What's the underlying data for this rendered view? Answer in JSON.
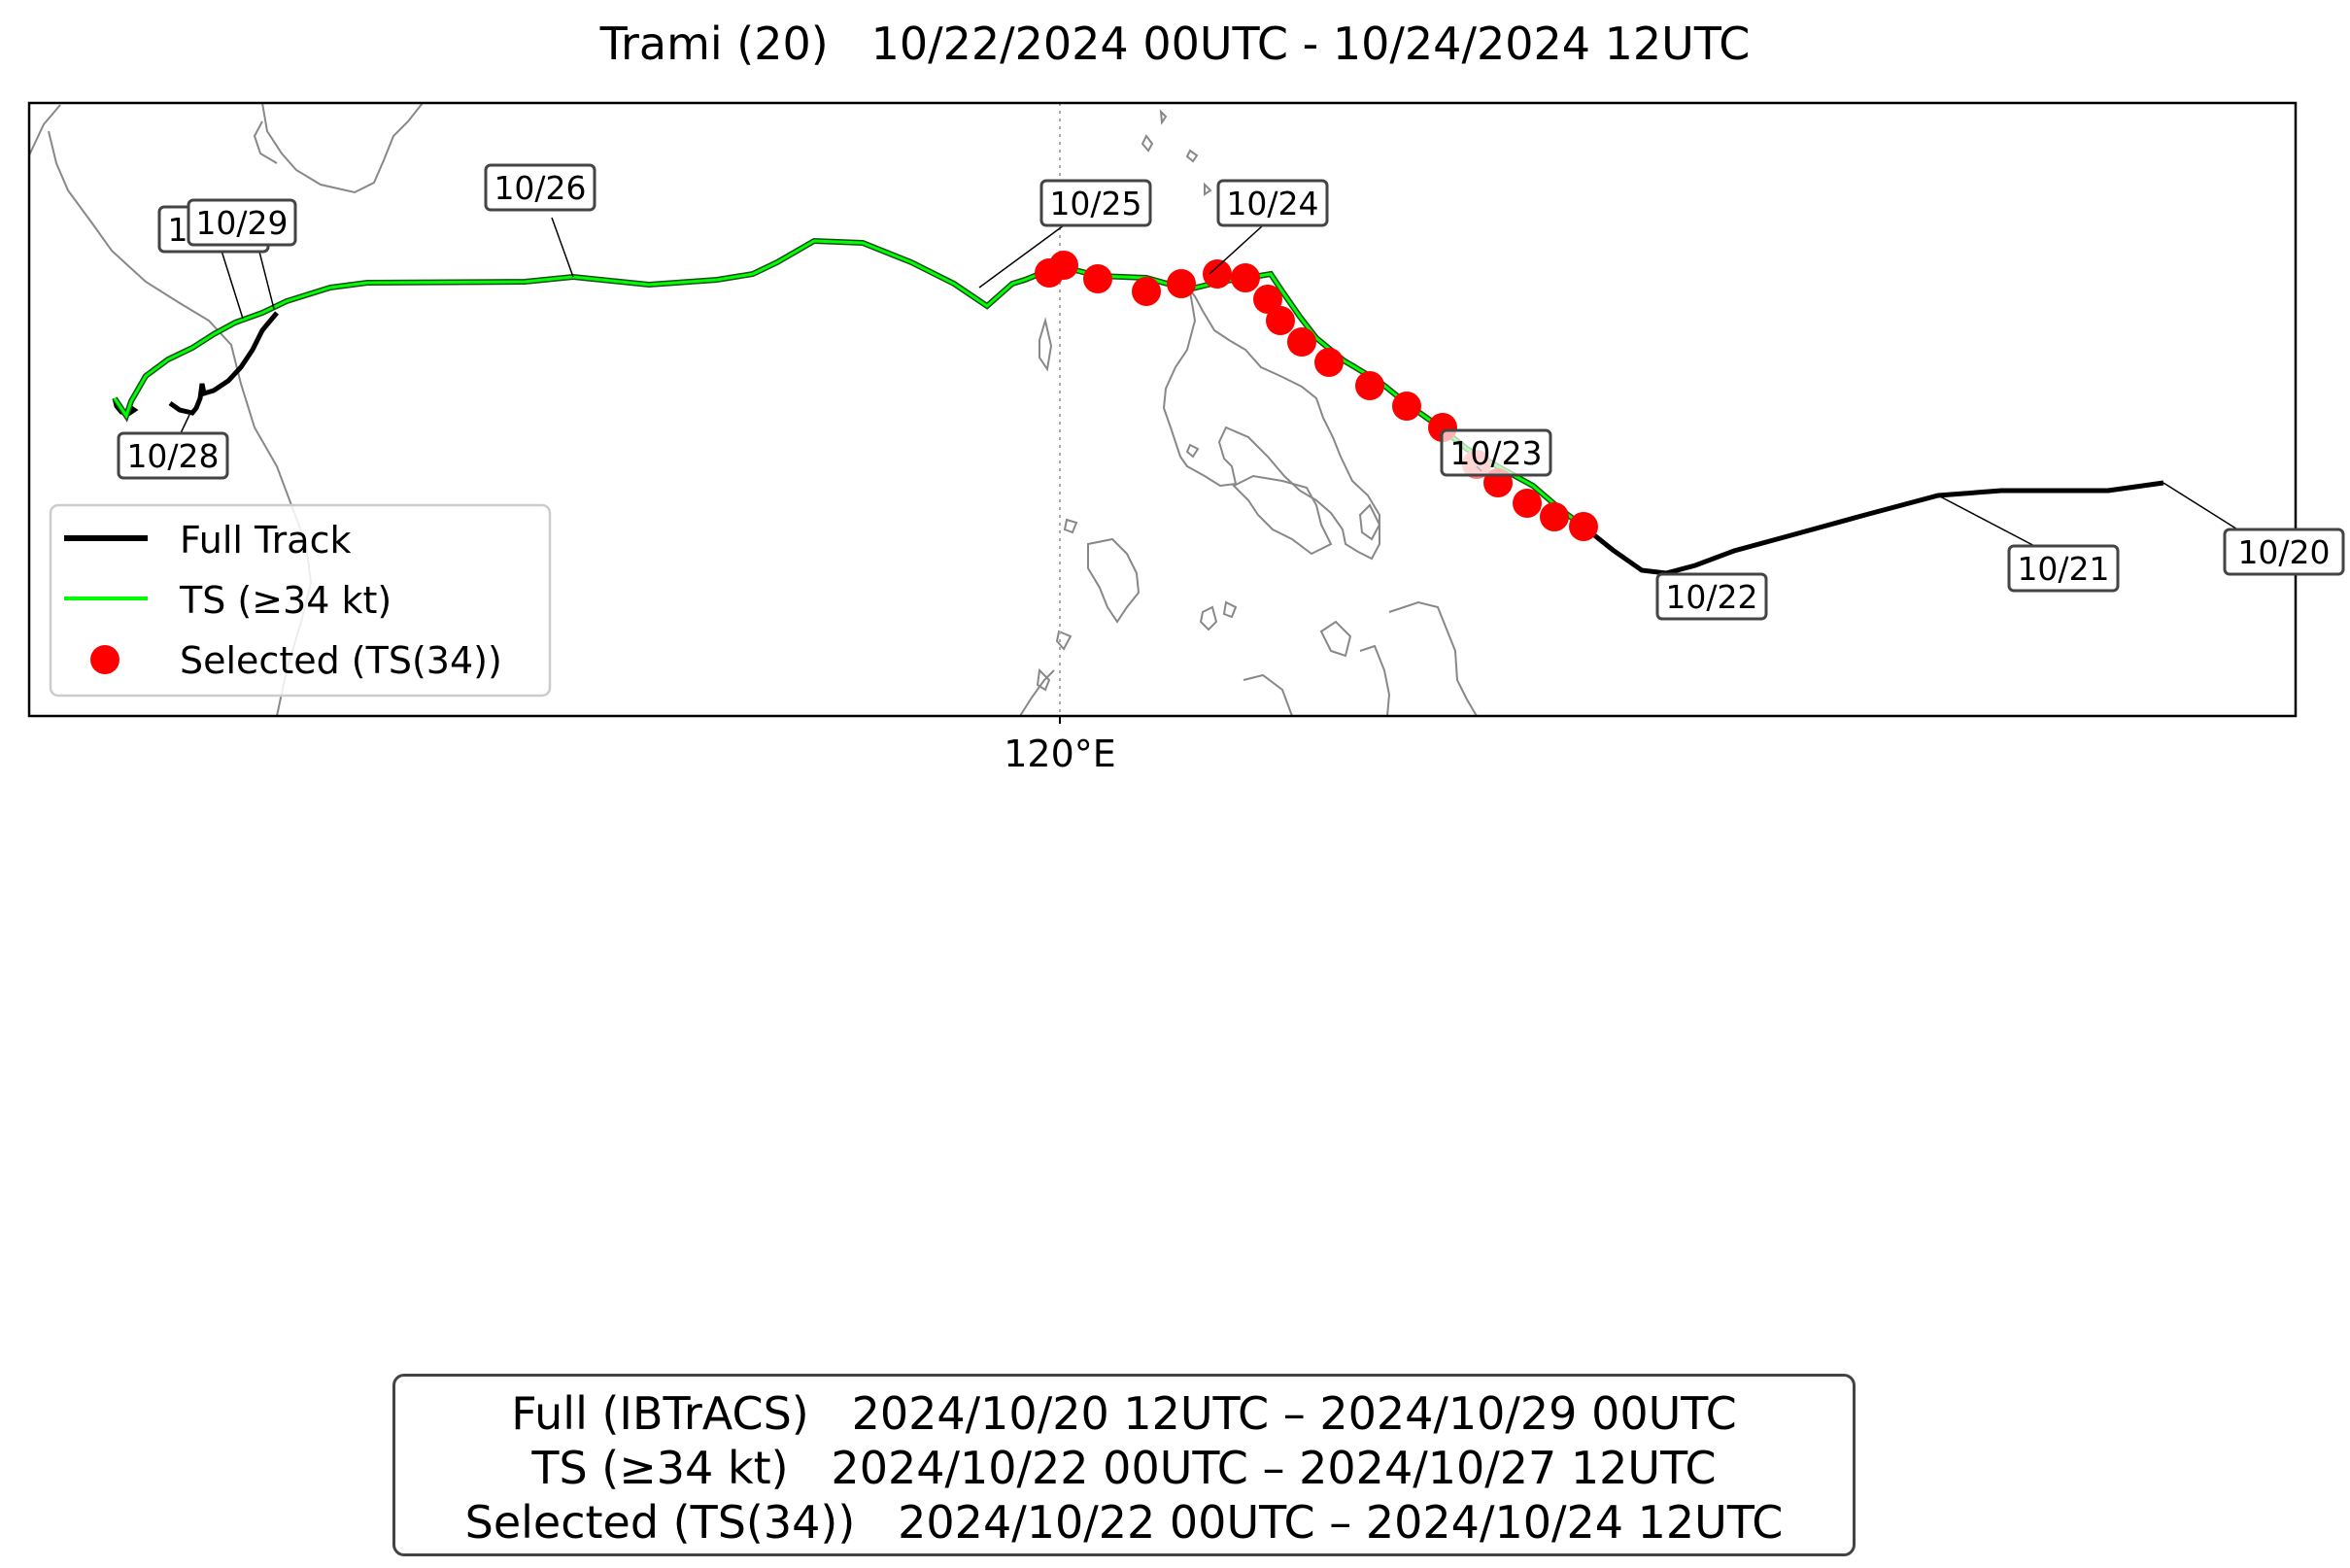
{
  "title": "Trami (20)   10/22/2024 00UTC - 10/24/2024 12UTC",
  "axis": {
    "x_tick_label": "120°E",
    "x_tick_lon": 120
  },
  "legend": {
    "items": [
      {
        "label": "Full Track",
        "color": "#000000",
        "kind": "line"
      },
      {
        "label": "TS (≥34 kt)",
        "color": "#00ff00",
        "kind": "line"
      },
      {
        "label": "Selected (TS(34))",
        "color": "#ff0000",
        "kind": "dot"
      }
    ]
  },
  "date_labels": [
    "10/20",
    "10/21",
    "10/22",
    "10/23",
    "10/24",
    "10/25",
    "10/26",
    "10/27",
    "10/28",
    "10/29"
  ],
  "summary": {
    "line1": "Full (IBTrACS)   2024/10/20 12UTC – 2024/10/29 00UTC",
    "line2": "TS (≥34 kt)   2024/10/22 00UTC – 2024/10/27 12UTC",
    "line3": "Selected (TS(34))   2024/10/22 00UTC – 2024/10/24 12UTC"
  },
  "colors": {
    "full_track": "#000000",
    "ts_track": "#00ff00",
    "selected": "#ff0000",
    "coastline": "#888888"
  }
}
